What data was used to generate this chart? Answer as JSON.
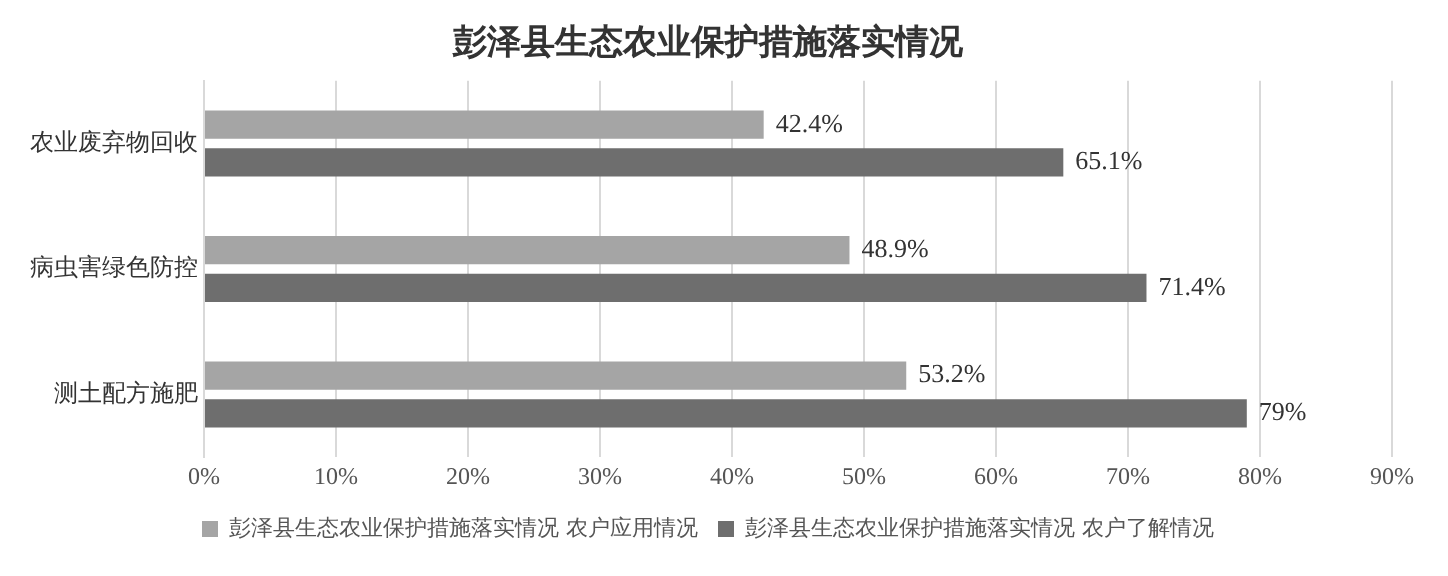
{
  "chart_data": {
    "type": "bar",
    "orientation": "horizontal",
    "title": "彭泽县生态农业保护措施落实情况",
    "categories": [
      "农业废弃物回收",
      "病虫害绿色防控",
      "测土配方施肥"
    ],
    "series": [
      {
        "name": "彭泽县生态农业保护措施落实情况 农户应用情况",
        "color": "#a5a5a5",
        "values": [
          42.4,
          48.9,
          53.2
        ],
        "value_labels": [
          "42.4%",
          "48.9%",
          "53.2%"
        ]
      },
      {
        "name": "彭泽县生态农业保护措施落实情况 农户了解情况",
        "color": "#6e6e6e",
        "values": [
          65.1,
          71.4,
          79
        ],
        "value_labels": [
          "65.1%",
          "71.4%",
          "79%"
        ]
      }
    ],
    "xlim": [
      0,
      90
    ],
    "xticks": [
      {
        "value": 0,
        "label": "0%"
      },
      {
        "value": 10,
        "label": "10%"
      },
      {
        "value": 20,
        "label": "20%"
      },
      {
        "value": 30,
        "label": "30%"
      },
      {
        "value": 40,
        "label": "40%"
      },
      {
        "value": 50,
        "label": "50%"
      },
      {
        "value": 60,
        "label": "60%"
      },
      {
        "value": 70,
        "label": "70%"
      },
      {
        "value": 80,
        "label": "80%"
      },
      {
        "value": 90,
        "label": "90%"
      }
    ],
    "grid": "x",
    "legend": "bottom"
  }
}
